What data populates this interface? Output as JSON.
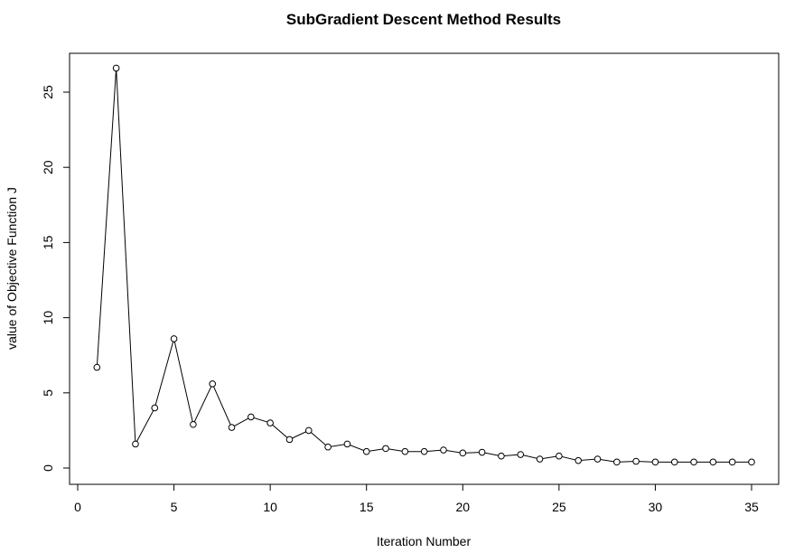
{
  "chart_data": {
    "type": "line",
    "title": "SubGradient Descent Method Results",
    "xlabel": "Iteration Number",
    "ylabel": "value of Objective Function J",
    "xlim": [
      0,
      35
    ],
    "ylim": [
      0,
      26.5
    ],
    "xticks": [
      0,
      5,
      10,
      15,
      20,
      25,
      30,
      35
    ],
    "yticks": [
      0,
      5,
      10,
      15,
      20,
      25
    ],
    "grid": false,
    "marker": "open-circle",
    "line_color": "#000000",
    "x": [
      1,
      2,
      3,
      4,
      5,
      6,
      7,
      8,
      9,
      10,
      11,
      12,
      13,
      14,
      15,
      16,
      17,
      18,
      19,
      20,
      21,
      22,
      23,
      24,
      25,
      26,
      27,
      28,
      29,
      30,
      31,
      32,
      33,
      34,
      35
    ],
    "y": [
      6.7,
      26.6,
      1.6,
      4.0,
      8.6,
      2.9,
      5.6,
      2.7,
      3.4,
      3.0,
      1.9,
      2.5,
      1.4,
      1.6,
      1.1,
      1.3,
      1.1,
      1.1,
      1.2,
      1.0,
      1.05,
      0.8,
      0.9,
      0.6,
      0.8,
      0.5,
      0.6,
      0.4,
      0.45,
      0.4,
      0.4,
      0.4,
      0.4,
      0.4,
      0.4
    ]
  }
}
